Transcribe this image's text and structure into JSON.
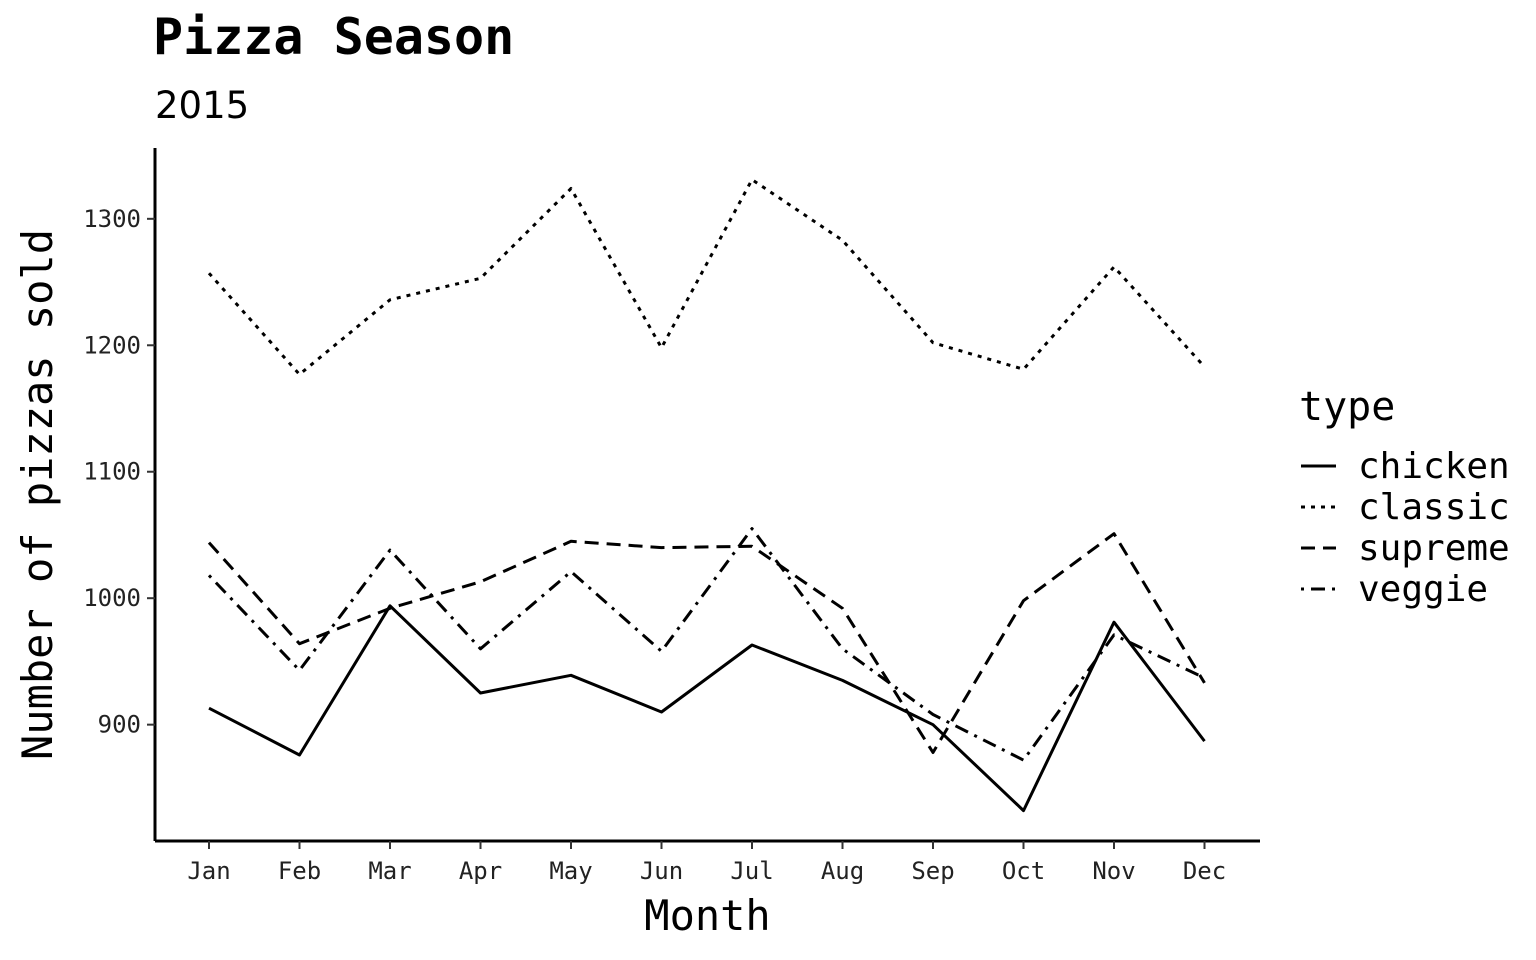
{
  "chart_data": {
    "type": "line",
    "title": "Pizza Season",
    "subtitle": "2015",
    "xlabel": "Month",
    "ylabel": "Number of pizzas sold",
    "categories": [
      "Jan",
      "Feb",
      "Mar",
      "Apr",
      "May",
      "Jun",
      "Jul",
      "Aug",
      "Sep",
      "Oct",
      "Nov",
      "Dec"
    ],
    "yticks": [
      900,
      1000,
      1100,
      1200,
      1300
    ],
    "ylim": [
      808,
      1356
    ],
    "grid": false,
    "legend": {
      "title": "type",
      "position": "right"
    },
    "series": [
      {
        "name": "chicken",
        "dash": "solid",
        "values": [
          913,
          876,
          994,
          925,
          939,
          910,
          963,
          935,
          900,
          832,
          981,
          887
        ]
      },
      {
        "name": "classic",
        "dash": "dotted",
        "values": [
          1257,
          1177,
          1236,
          1253,
          1324,
          1198,
          1331,
          1283,
          1202,
          1181,
          1262,
          1183
        ]
      },
      {
        "name": "supreme",
        "dash": "dashed",
        "values": [
          1044,
          964,
          992,
          1013,
          1045,
          1040,
          1041,
          992,
          878,
          998,
          1051,
          933
        ]
      },
      {
        "name": "veggie",
        "dash": "dotdash",
        "values": [
          1018,
          943,
          1038,
          960,
          1021,
          958,
          1055,
          960,
          908,
          872,
          971,
          937
        ]
      }
    ]
  }
}
